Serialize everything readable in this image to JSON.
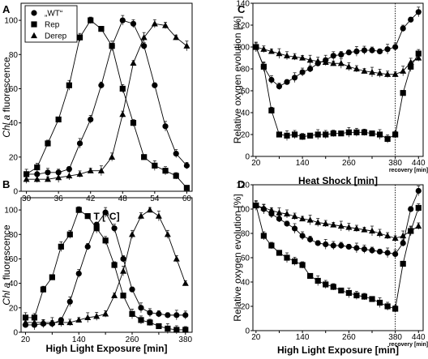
{
  "chart_data": [
    {
      "panel": "A",
      "type": "line",
      "xlabel": "T [°C]",
      "ylabel": "Chl a fluorescence",
      "ylabel_italic": "Chl a",
      "ylabel_rest": " fluorescence",
      "xlim": [
        29,
        61
      ],
      "ylim": [
        0,
        110
      ],
      "xticks": [
        30,
        36,
        42,
        48,
        54,
        60
      ],
      "yticks": [
        0,
        20,
        40,
        60,
        80,
        100
      ],
      "legend": {
        "position": "top-left",
        "entries": [
          "„WT“",
          "Rep",
          "Derep"
        ]
      },
      "series": [
        {
          "name": "„WT“",
          "marker": "circle",
          "x": [
            30,
            32,
            34,
            36,
            38,
            40,
            42,
            44,
            46,
            48,
            50,
            52,
            54,
            56,
            58,
            60
          ],
          "y": [
            10,
            10,
            11,
            11,
            13,
            28,
            42,
            62,
            85,
            100,
            98,
            85,
            62,
            38,
            22,
            15
          ]
        },
        {
          "name": "Rep",
          "marker": "square",
          "x": [
            30,
            32,
            34,
            36,
            38,
            40,
            42,
            44,
            46,
            48,
            50,
            52,
            54,
            56,
            58,
            60
          ],
          "y": [
            10,
            14,
            28,
            42,
            62,
            90,
            100,
            95,
            85,
            60,
            40,
            20,
            15,
            12,
            9,
            2
          ]
        },
        {
          "name": "Derep",
          "marker": "triangle",
          "x": [
            30,
            32,
            34,
            36,
            38,
            40,
            42,
            44,
            46,
            48,
            50,
            52,
            54,
            56,
            58,
            60
          ],
          "y": [
            7,
            7,
            7,
            8,
            9,
            10,
            12,
            12,
            20,
            45,
            75,
            90,
            98,
            97,
            90,
            85
          ]
        }
      ]
    },
    {
      "panel": "B",
      "type": "line",
      "xlabel": "High Light Exposure [min]",
      "ylabel": "Chl a fluorescence",
      "ylabel_italic": "Chl a",
      "ylabel_rest": " fluorescence",
      "xlim": [
        10,
        395
      ],
      "ylim": [
        0,
        110
      ],
      "xticks": [
        20,
        80,
        140,
        200,
        260,
        320,
        380
      ],
      "xtick_labels": [
        "20",
        "",
        "140",
        "",
        "260",
        "",
        "380"
      ],
      "yticks": [
        0,
        20,
        40,
        60,
        80,
        100
      ],
      "series": [
        {
          "name": "„WT“",
          "marker": "circle",
          "x": [
            20,
            40,
            60,
            80,
            100,
            120,
            140,
            160,
            180,
            200,
            220,
            240,
            260,
            280,
            300,
            320,
            340,
            360,
            380
          ],
          "y": [
            6,
            6,
            7,
            7,
            10,
            25,
            48,
            70,
            88,
            98,
            85,
            60,
            35,
            20,
            16,
            15,
            14,
            14,
            14
          ]
        },
        {
          "name": "Rep",
          "marker": "square",
          "x": [
            20,
            40,
            60,
            80,
            100,
            120,
            140,
            160,
            180,
            200,
            220,
            240,
            260,
            280,
            300,
            320,
            340,
            360,
            380
          ],
          "y": [
            12,
            12,
            35,
            45,
            70,
            80,
            100,
            95,
            85,
            75,
            55,
            30,
            15,
            10,
            8,
            5,
            3,
            2,
            2
          ]
        },
        {
          "name": "Derep",
          "marker": "triangle",
          "x": [
            20,
            40,
            60,
            80,
            100,
            120,
            140,
            160,
            180,
            200,
            220,
            240,
            260,
            280,
            300,
            320,
            340,
            360,
            380
          ],
          "y": [
            8,
            8,
            8,
            8,
            8,
            8,
            10,
            12,
            13,
            15,
            30,
            50,
            80,
            95,
            100,
            95,
            80,
            60,
            40
          ]
        }
      ]
    },
    {
      "panel": "C",
      "type": "line",
      "xlabel": "Heat Shock [min]",
      "ylabel": "Relative oxygen evolution [%]",
      "xlim": [
        12,
        452
      ],
      "ylim": [
        0,
        140
      ],
      "xticks": [
        20,
        80,
        140,
        200,
        260,
        320,
        380,
        440
      ],
      "xtick_labels": [
        "20",
        "",
        "140",
        "",
        "260",
        "",
        "380",
        "440"
      ],
      "yticks": [
        0,
        20,
        40,
        60,
        80,
        100,
        120,
        140
      ],
      "annotation": "recovery [min]",
      "recovery_line_x": 380,
      "series": [
        {
          "name": "„WT“",
          "marker": "circle",
          "x": [
            20,
            40,
            60,
            80,
            100,
            120,
            140,
            160,
            180,
            200,
            220,
            240,
            260,
            280,
            300,
            320,
            340,
            360,
            380,
            400,
            420,
            440
          ],
          "y": [
            100,
            82,
            70,
            64,
            68,
            72,
            77,
            80,
            85,
            88,
            92,
            93,
            95,
            96,
            97,
            97,
            96,
            98,
            100,
            117,
            125,
            132
          ]
        },
        {
          "name": "Rep",
          "marker": "square",
          "x": [
            20,
            40,
            60,
            80,
            100,
            120,
            140,
            160,
            180,
            200,
            220,
            240,
            260,
            280,
            300,
            320,
            340,
            360,
            380,
            400,
            420,
            440
          ],
          "y": [
            100,
            82,
            42,
            20,
            19,
            20,
            18,
            19,
            20,
            20,
            21,
            21,
            22,
            22,
            22,
            21,
            20,
            16,
            20,
            58,
            82,
            94
          ]
        },
        {
          "name": "Derep",
          "marker": "triangle",
          "x": [
            20,
            40,
            60,
            80,
            100,
            120,
            140,
            160,
            180,
            200,
            220,
            240,
            260,
            280,
            300,
            320,
            340,
            360,
            380,
            400,
            420,
            440
          ],
          "y": [
            100,
            98,
            96,
            94,
            92,
            91,
            90,
            88,
            87,
            86,
            85,
            85,
            82,
            80,
            78,
            77,
            76,
            75,
            75,
            78,
            86,
            90
          ]
        }
      ]
    },
    {
      "panel": "D",
      "type": "line",
      "xlabel": "High Light Exposure [min]",
      "ylabel": "Relative oxygen evolution [%]",
      "xlim": [
        12,
        452
      ],
      "ylim": [
        0,
        120
      ],
      "xticks": [
        20,
        80,
        140,
        200,
        260,
        320,
        380,
        440
      ],
      "xtick_labels": [
        "20",
        "",
        "140",
        "",
        "260",
        "",
        "380",
        "440"
      ],
      "yticks": [
        0,
        20,
        40,
        60,
        80,
        100,
        120
      ],
      "annotation": "recovery [min]",
      "recovery_line_x": 380,
      "series": [
        {
          "name": "„WT“",
          "marker": "circle",
          "x": [
            20,
            40,
            60,
            80,
            100,
            120,
            140,
            160,
            180,
            200,
            220,
            240,
            260,
            280,
            300,
            320,
            340,
            360,
            380,
            400,
            420,
            440
          ],
          "y": [
            103,
            100,
            96,
            92,
            88,
            84,
            78,
            75,
            72,
            71,
            70,
            70,
            69,
            68,
            67,
            66,
            65,
            64,
            63,
            72,
            100,
            115
          ]
        },
        {
          "name": "Rep",
          "marker": "square",
          "x": [
            20,
            40,
            60,
            80,
            100,
            120,
            140,
            160,
            180,
            200,
            220,
            240,
            260,
            280,
            300,
            320,
            340,
            360,
            380,
            400,
            420,
            440
          ],
          "y": [
            103,
            78,
            70,
            64,
            60,
            57,
            54,
            45,
            41,
            38,
            36,
            33,
            31,
            29,
            28,
            26,
            23,
            20,
            18,
            55,
            82,
            101
          ]
        },
        {
          "name": "Derep",
          "marker": "triangle",
          "x": [
            20,
            40,
            60,
            80,
            100,
            120,
            140,
            160,
            180,
            200,
            220,
            240,
            260,
            280,
            300,
            320,
            340,
            360,
            380,
            400,
            420,
            440
          ],
          "y": [
            103,
            101,
            99,
            97,
            96,
            94,
            92,
            91,
            89,
            88,
            87,
            86,
            85,
            84,
            83,
            82,
            80,
            78,
            76,
            78,
            82,
            86
          ]
        }
      ]
    }
  ]
}
